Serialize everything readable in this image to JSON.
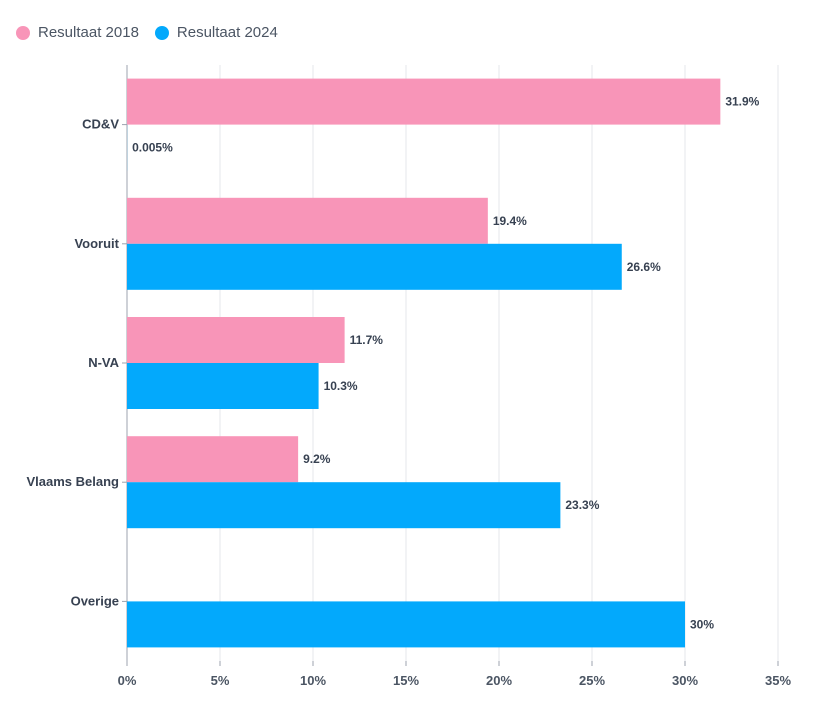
{
  "chart_data": {
    "type": "bar",
    "orientation": "horizontal",
    "categories": [
      "CD&V",
      "Vooruit",
      "N-VA",
      "Vlaams Belang",
      "Overige"
    ],
    "series": [
      {
        "name": "Resultaat 2018",
        "color": "#f895b8",
        "values": [
          31.9,
          19.4,
          11.7,
          9.2,
          null
        ],
        "labels": [
          "31.9%",
          "19.4%",
          "11.7%",
          "9.2%",
          ""
        ]
      },
      {
        "name": "Resultaat 2024",
        "color": "#03a9fc",
        "values": [
          0.005,
          26.6,
          10.3,
          23.3,
          30
        ],
        "labels": [
          "0.005%",
          "26.6%",
          "10.3%",
          "23.3%",
          "30%"
        ]
      }
    ],
    "xlim": [
      0,
      35
    ],
    "xticks": [
      0,
      5,
      10,
      15,
      20,
      25,
      30,
      35
    ],
    "xtick_labels": [
      "0%",
      "5%",
      "10%",
      "15%",
      "20%",
      "25%",
      "30%",
      "35%"
    ],
    "grid": true,
    "legend": "top-left",
    "title": "",
    "xlabel": "",
    "ylabel": ""
  }
}
